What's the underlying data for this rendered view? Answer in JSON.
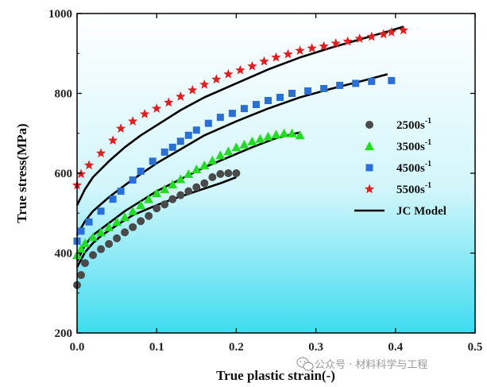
{
  "chart_data": {
    "type": "scatter",
    "xlabel": "True plastic strain(-)",
    "ylabel": "True stress(MPa)",
    "xlim": [
      0.0,
      0.5
    ],
    "ylim": [
      200,
      1000
    ],
    "xticks": [
      "0.0",
      "0.1",
      "0.2",
      "0.3",
      "0.4",
      "0.5"
    ],
    "yticks": [
      "200",
      "400",
      "600",
      "800",
      "1000"
    ],
    "legend_position": "right",
    "background": "vertical gradient white to cyan",
    "series": [
      {
        "name": "2500s",
        "superscript": "-1",
        "marker": "circle",
        "color": "#4a4a4a",
        "points": [
          [
            0.0,
            320
          ],
          [
            0.005,
            345
          ],
          [
            0.01,
            375
          ],
          [
            0.02,
            395
          ],
          [
            0.03,
            410
          ],
          [
            0.04,
            423
          ],
          [
            0.05,
            437
          ],
          [
            0.06,
            452
          ],
          [
            0.07,
            465
          ],
          [
            0.08,
            480
          ],
          [
            0.09,
            493
          ],
          [
            0.1,
            512
          ],
          [
            0.11,
            522
          ],
          [
            0.12,
            535
          ],
          [
            0.13,
            545
          ],
          [
            0.14,
            555
          ],
          [
            0.15,
            565
          ],
          [
            0.16,
            575
          ],
          [
            0.17,
            590
          ],
          [
            0.18,
            598
          ],
          [
            0.19,
            600
          ],
          [
            0.2,
            600
          ]
        ]
      },
      {
        "name": "3500s",
        "superscript": "-1",
        "marker": "triangle",
        "color": "#22dd22",
        "points": [
          [
            0.0,
            395
          ],
          [
            0.005,
            410
          ],
          [
            0.01,
            425
          ],
          [
            0.02,
            440
          ],
          [
            0.03,
            452
          ],
          [
            0.04,
            465
          ],
          [
            0.05,
            478
          ],
          [
            0.06,
            490
          ],
          [
            0.07,
            505
          ],
          [
            0.08,
            520
          ],
          [
            0.09,
            535
          ],
          [
            0.1,
            550
          ],
          [
            0.11,
            560
          ],
          [
            0.12,
            572
          ],
          [
            0.13,
            585
          ],
          [
            0.14,
            598
          ],
          [
            0.15,
            610
          ],
          [
            0.16,
            620
          ],
          [
            0.17,
            632
          ],
          [
            0.18,
            645
          ],
          [
            0.19,
            655
          ],
          [
            0.2,
            665
          ],
          [
            0.21,
            672
          ],
          [
            0.22,
            680
          ],
          [
            0.23,
            686
          ],
          [
            0.24,
            692
          ],
          [
            0.25,
            697
          ],
          [
            0.26,
            700
          ],
          [
            0.27,
            700
          ],
          [
            0.28,
            695
          ]
        ]
      },
      {
        "name": "4500s",
        "superscript": "-1",
        "marker": "square",
        "color": "#2a6fd6",
        "points": [
          [
            0.0,
            430
          ],
          [
            0.005,
            455
          ],
          [
            0.015,
            478
          ],
          [
            0.03,
            505
          ],
          [
            0.045,
            535
          ],
          [
            0.055,
            555
          ],
          [
            0.07,
            583
          ],
          [
            0.08,
            605
          ],
          [
            0.095,
            630
          ],
          [
            0.11,
            653
          ],
          [
            0.12,
            665
          ],
          [
            0.13,
            680
          ],
          [
            0.14,
            695
          ],
          [
            0.15,
            708
          ],
          [
            0.165,
            725
          ],
          [
            0.18,
            740
          ],
          [
            0.195,
            750
          ],
          [
            0.21,
            762
          ],
          [
            0.225,
            772
          ],
          [
            0.24,
            782
          ],
          [
            0.255,
            790
          ],
          [
            0.27,
            800
          ],
          [
            0.29,
            806
          ],
          [
            0.31,
            812
          ],
          [
            0.33,
            820
          ],
          [
            0.35,
            825
          ],
          [
            0.37,
            830
          ],
          [
            0.395,
            832
          ]
        ]
      },
      {
        "name": "5500s",
        "superscript": "-1",
        "marker": "star",
        "color": "#e02020",
        "points": [
          [
            0.0,
            570
          ],
          [
            0.005,
            598
          ],
          [
            0.015,
            620
          ],
          [
            0.03,
            650
          ],
          [
            0.045,
            682
          ],
          [
            0.055,
            712
          ],
          [
            0.07,
            730
          ],
          [
            0.085,
            748
          ],
          [
            0.1,
            762
          ],
          [
            0.115,
            777
          ],
          [
            0.13,
            792
          ],
          [
            0.145,
            808
          ],
          [
            0.16,
            822
          ],
          [
            0.175,
            835
          ],
          [
            0.19,
            848
          ],
          [
            0.205,
            858
          ],
          [
            0.22,
            868
          ],
          [
            0.235,
            880
          ],
          [
            0.25,
            890
          ],
          [
            0.265,
            898
          ],
          [
            0.28,
            907
          ],
          [
            0.295,
            913
          ],
          [
            0.31,
            918
          ],
          [
            0.325,
            925
          ],
          [
            0.34,
            930
          ],
          [
            0.355,
            937
          ],
          [
            0.37,
            942
          ],
          [
            0.385,
            948
          ],
          [
            0.395,
            953
          ],
          [
            0.41,
            958
          ]
        ]
      },
      {
        "name": "JC Model",
        "marker": "line",
        "color": "#000000",
        "curves": [
          [
            [
              0.0,
              365
            ],
            [
              0.01,
              402
            ],
            [
              0.02,
              425
            ],
            [
              0.03,
              443
            ],
            [
              0.05,
              470
            ],
            [
              0.07,
              495
            ],
            [
              0.1,
              520
            ],
            [
              0.12,
              535
            ],
            [
              0.15,
              555
            ],
            [
              0.18,
              575
            ],
            [
              0.2,
              590
            ]
          ],
          [
            [
              0.0,
              380
            ],
            [
              0.01,
              420
            ],
            [
              0.02,
              445
            ],
            [
              0.04,
              475
            ],
            [
              0.06,
              505
            ],
            [
              0.08,
              530
            ],
            [
              0.1,
              555
            ],
            [
              0.13,
              585
            ],
            [
              0.16,
              615
            ],
            [
              0.19,
              640
            ],
            [
              0.22,
              665
            ],
            [
              0.25,
              688
            ],
            [
              0.28,
              702
            ]
          ],
          [
            [
              0.0,
              445
            ],
            [
              0.01,
              480
            ],
            [
              0.02,
              505
            ],
            [
              0.04,
              540
            ],
            [
              0.06,
              570
            ],
            [
              0.08,
              598
            ],
            [
              0.1,
              625
            ],
            [
              0.13,
              660
            ],
            [
              0.16,
              695
            ],
            [
              0.2,
              730
            ],
            [
              0.24,
              762
            ],
            [
              0.28,
              790
            ],
            [
              0.32,
              812
            ],
            [
              0.36,
              832
            ],
            [
              0.39,
              848
            ]
          ],
          [
            [
              0.0,
              520
            ],
            [
              0.01,
              560
            ],
            [
              0.02,
              590
            ],
            [
              0.04,
              630
            ],
            [
              0.06,
              665
            ],
            [
              0.08,
              695
            ],
            [
              0.1,
              720
            ],
            [
              0.13,
              758
            ],
            [
              0.16,
              790
            ],
            [
              0.2,
              825
            ],
            [
              0.24,
              860
            ],
            [
              0.28,
              890
            ],
            [
              0.32,
              915
            ],
            [
              0.36,
              938
            ],
            [
              0.39,
              955
            ],
            [
              0.41,
              967
            ]
          ]
        ]
      }
    ]
  },
  "watermark": {
    "text": "公众号 · 材料科学与工程",
    "icon": "wechat-icon"
  }
}
